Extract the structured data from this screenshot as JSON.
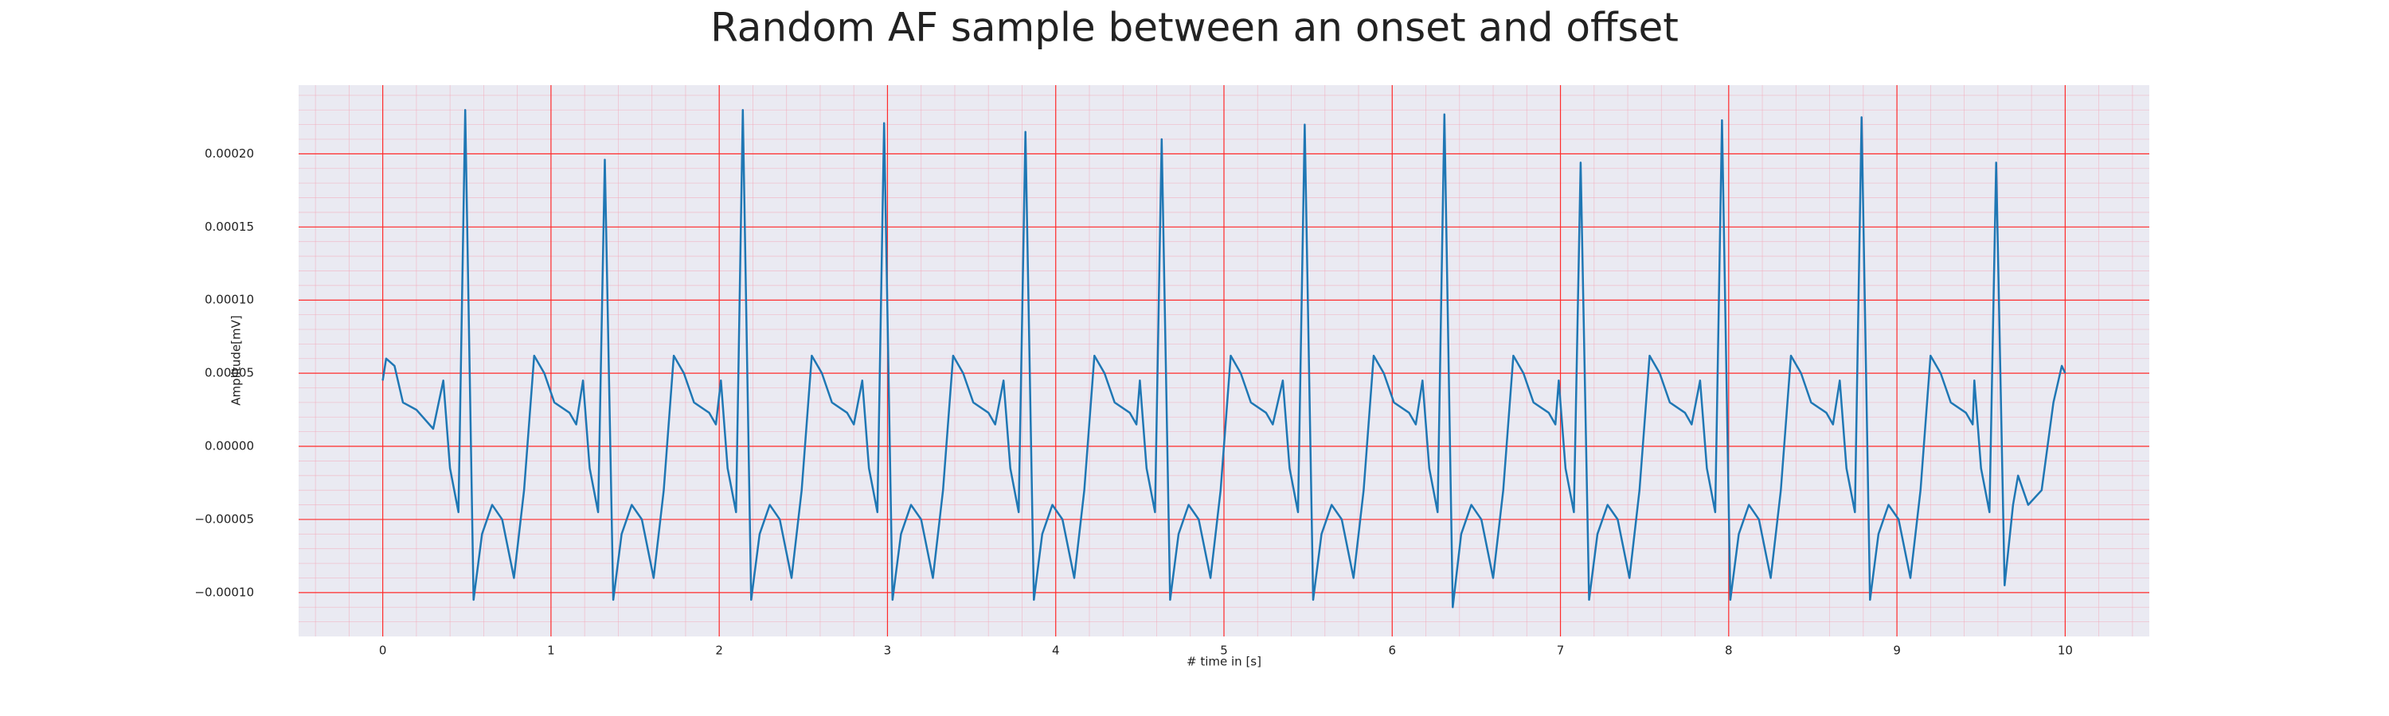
{
  "chart_data": {
    "type": "line",
    "title": "Random AF sample between an onset and offset",
    "x_label": "# time in [s]",
    "y_label": "Amplitude[mV]",
    "xlim": [
      -0.5,
      10.5
    ],
    "ylim": [
      -0.00013,
      0.000247
    ],
    "xticks": [
      0,
      1,
      2,
      3,
      4,
      5,
      6,
      7,
      8,
      9,
      10
    ],
    "yticks": [
      {
        "value": -0.0001,
        "label": "−0.00010"
      },
      {
        "value": -5e-05,
        "label": "−0.00005"
      },
      {
        "value": 0,
        "label": "0.00000"
      },
      {
        "value": 5e-05,
        "label": "0.00005"
      },
      {
        "value": 0.0001,
        "label": "0.00010"
      },
      {
        "value": 0.00015,
        "label": "0.00015"
      },
      {
        "value": 0.0002,
        "label": "0.00020"
      }
    ],
    "grid": true,
    "minor_grid": true,
    "x": [
      0,
      0.02,
      0.07,
      0.12,
      0.2,
      0.3,
      0.36,
      0.4,
      0.45,
      0.49,
      0.54,
      0.59,
      0.65,
      0.71,
      0.78,
      0.84,
      0.9,
      0.96,
      1.02,
      1.11,
      1.15,
      1.19,
      1.23,
      1.28,
      1.32,
      1.37,
      1.42,
      1.48,
      1.54,
      1.61,
      1.67,
      1.73,
      1.79,
      1.85,
      1.94,
      1.98,
      2.01,
      2.05,
      2.1,
      2.14,
      2.19,
      2.24,
      2.3,
      2.36,
      2.43,
      2.49,
      2.55,
      2.61,
      2.67,
      2.76,
      2.8,
      2.85,
      2.89,
      2.94,
      2.98,
      3.03,
      3.08,
      3.14,
      3.2,
      3.27,
      3.33,
      3.39,
      3.45,
      3.51,
      3.6,
      3.64,
      3.69,
      3.73,
      3.78,
      3.82,
      3.87,
      3.92,
      3.98,
      4.04,
      4.11,
      4.17,
      4.23,
      4.29,
      4.35,
      4.44,
      4.48,
      4.5,
      4.54,
      4.59,
      4.63,
      4.68,
      4.73,
      4.79,
      4.85,
      4.92,
      4.98,
      5.04,
      5.1,
      5.16,
      5.25,
      5.29,
      5.35,
      5.39,
      5.44,
      5.48,
      5.53,
      5.58,
      5.64,
      5.7,
      5.77,
      5.83,
      5.89,
      5.95,
      6.01,
      6.1,
      6.14,
      6.18,
      6.22,
      6.27,
      6.31,
      6.36,
      6.41,
      6.47,
      6.53,
      6.6,
      6.66,
      6.72,
      6.78,
      6.84,
      6.93,
      6.97,
      6.99,
      7.03,
      7.08,
      7.12,
      7.17,
      7.22,
      7.28,
      7.34,
      7.41,
      7.47,
      7.53,
      7.59,
      7.65,
      7.74,
      7.78,
      7.83,
      7.87,
      7.92,
      7.96,
      8.01,
      8.06,
      8.12,
      8.18,
      8.25,
      8.31,
      8.37,
      8.43,
      8.49,
      8.58,
      8.62,
      8.66,
      8.7,
      8.75,
      8.79,
      8.84,
      8.89,
      8.95,
      9.01,
      9.08,
      9.14,
      9.2,
      9.26,
      9.32,
      9.41,
      9.45,
      9.46,
      9.5,
      9.55,
      9.59,
      9.64,
      9.69,
      9.72,
      9.78,
      9.86,
      9.93,
      9.98,
      10.0
    ],
    "series": [
      {
        "color": "#1f77b4",
        "values": [
          4.5e-05,
          6e-05,
          5.5e-05,
          3e-05,
          2.5e-05,
          1.2e-05,
          4.5e-05,
          -1.5e-05,
          -4.5e-05,
          0.00023,
          -0.000105,
          -6e-05,
          -4e-05,
          -5e-05,
          -9e-05,
          -3e-05,
          6.2e-05,
          5e-05,
          3e-05,
          2.3e-05,
          1.5e-05,
          4.5e-05,
          -1.5e-05,
          -4.5e-05,
          0.000196,
          -0.000105,
          -6e-05,
          -4e-05,
          -5e-05,
          -9e-05,
          -3e-05,
          6.2e-05,
          5e-05,
          3e-05,
          2.3e-05,
          1.5e-05,
          4.5e-05,
          -1.5e-05,
          -4.5e-05,
          0.00023,
          -0.000105,
          -6e-05,
          -4e-05,
          -5e-05,
          -9e-05,
          -3e-05,
          6.2e-05,
          5e-05,
          3e-05,
          2.3e-05,
          1.5e-05,
          4.5e-05,
          -1.5e-05,
          -4.5e-05,
          0.000221,
          -0.000105,
          -6e-05,
          -4e-05,
          -5e-05,
          -9e-05,
          -3e-05,
          6.2e-05,
          5e-05,
          3e-05,
          2.3e-05,
          1.5e-05,
          4.5e-05,
          -1.5e-05,
          -4.5e-05,
          0.000215,
          -0.000105,
          -6e-05,
          -4e-05,
          -5e-05,
          -9e-05,
          -3e-05,
          6.2e-05,
          5e-05,
          3e-05,
          2.3e-05,
          1.5e-05,
          4.5e-05,
          -1.5e-05,
          -4.5e-05,
          0.00021,
          -0.000105,
          -6e-05,
          -4e-05,
          -5e-05,
          -9e-05,
          -3e-05,
          6.2e-05,
          5e-05,
          3e-05,
          2.3e-05,
          1.5e-05,
          4.5e-05,
          -1.5e-05,
          -4.5e-05,
          0.00022,
          -0.000105,
          -6e-05,
          -4e-05,
          -5e-05,
          -9e-05,
          -3e-05,
          6.2e-05,
          5e-05,
          3e-05,
          2.3e-05,
          1.5e-05,
          4.5e-05,
          -1.5e-05,
          -4.5e-05,
          0.000227,
          -0.00011,
          -6e-05,
          -4e-05,
          -5e-05,
          -9e-05,
          -3e-05,
          6.2e-05,
          5e-05,
          3e-05,
          2.3e-05,
          1.5e-05,
          4.5e-05,
          -1.5e-05,
          -4.5e-05,
          0.000194,
          -0.000105,
          -6e-05,
          -4e-05,
          -5e-05,
          -9e-05,
          -3e-05,
          6.2e-05,
          5e-05,
          3e-05,
          2.3e-05,
          1.5e-05,
          4.5e-05,
          -1.5e-05,
          -4.5e-05,
          0.000223,
          -0.000105,
          -6e-05,
          -4e-05,
          -5e-05,
          -9e-05,
          -3e-05,
          6.2e-05,
          5e-05,
          3e-05,
          2.3e-05,
          1.5e-05,
          4.5e-05,
          -1.5e-05,
          -4.5e-05,
          0.000225,
          -0.000105,
          -6e-05,
          -4e-05,
          -5e-05,
          -9e-05,
          -3e-05,
          6.2e-05,
          5e-05,
          3e-05,
          2.3e-05,
          1.5e-05,
          4.5e-05,
          -1.5e-05,
          -4.5e-05,
          0.000194,
          -9.5e-05,
          -4e-05,
          -2e-05,
          -4e-05,
          -3e-05,
          3e-05,
          5.5e-05,
          5e-05
        ]
      }
    ]
  }
}
